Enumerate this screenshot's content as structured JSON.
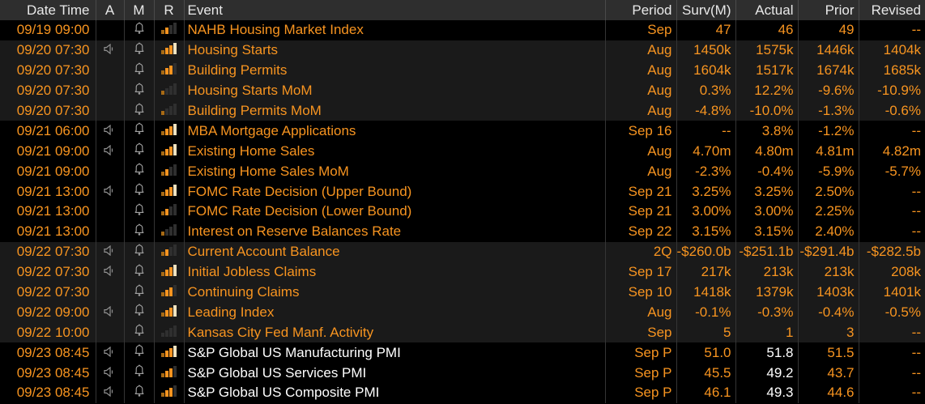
{
  "colors": {
    "amber": "#f79420",
    "white_text": "#ffffff",
    "header_bg": "#2e2e2e",
    "header_text": "#e8e8e8",
    "row_black": "#000000",
    "row_dark": "#1a1a1a",
    "grid_line": "#353535",
    "icon_gray": "#9a9a9a",
    "relevance_bar_orange": "#f79420",
    "relevance_bar_white": "#efe2c0"
  },
  "icons": {
    "speaker": "speaker-icon",
    "bell": "bell-icon",
    "relevance": "relevance-bars-icon"
  },
  "table": {
    "columns": [
      {
        "key": "datetime",
        "label": "Date Time"
      },
      {
        "key": "alert",
        "label": "A"
      },
      {
        "key": "monitor",
        "label": "M"
      },
      {
        "key": "relevance",
        "label": "R"
      },
      {
        "key": "event",
        "label": "Event"
      },
      {
        "key": "period",
        "label": "Period"
      },
      {
        "key": "surv",
        "label": "Surv(M)"
      },
      {
        "key": "actual",
        "label": "Actual"
      },
      {
        "key": "prior",
        "label": "Prior"
      },
      {
        "key": "revised",
        "label": "Revised"
      }
    ],
    "rows": [
      {
        "datetime": "09/19 09:00",
        "speaker": false,
        "bell": true,
        "relevance": 2,
        "event": "NAHB Housing Market Index",
        "period": "Sep",
        "surv": "47",
        "actual": "46",
        "prior": "49",
        "revised": "--",
        "highlight": false
      },
      {
        "datetime": "09/20 07:30",
        "speaker": true,
        "bell": true,
        "relevance": 4,
        "event": "Housing Starts",
        "period": "Aug",
        "surv": "1450k",
        "actual": "1575k",
        "prior": "1446k",
        "revised": "1404k",
        "highlight": false
      },
      {
        "datetime": "09/20 07:30",
        "speaker": false,
        "bell": true,
        "relevance": 3,
        "event": "Building Permits",
        "period": "Aug",
        "surv": "1604k",
        "actual": "1517k",
        "prior": "1674k",
        "revised": "1685k",
        "highlight": false
      },
      {
        "datetime": "09/20 07:30",
        "speaker": false,
        "bell": true,
        "relevance": 1,
        "event": "Housing Starts MoM",
        "period": "Aug",
        "surv": "0.3%",
        "actual": "12.2%",
        "prior": "-9.6%",
        "revised": "-10.9%",
        "highlight": false
      },
      {
        "datetime": "09/20 07:30",
        "speaker": false,
        "bell": true,
        "relevance": 1,
        "event": "Building Permits MoM",
        "period": "Aug",
        "surv": "-4.8%",
        "actual": "-10.0%",
        "prior": "-1.3%",
        "revised": "-0.6%",
        "highlight": false
      },
      {
        "datetime": "09/21 06:00",
        "speaker": true,
        "bell": true,
        "relevance": 4,
        "event": "MBA Mortgage Applications",
        "period": "Sep 16",
        "surv": "--",
        "actual": "3.8%",
        "prior": "-1.2%",
        "revised": "--",
        "highlight": false
      },
      {
        "datetime": "09/21 09:00",
        "speaker": true,
        "bell": true,
        "relevance": 4,
        "event": "Existing Home Sales",
        "period": "Aug",
        "surv": "4.70m",
        "actual": "4.80m",
        "prior": "4.81m",
        "revised": "4.82m",
        "highlight": false
      },
      {
        "datetime": "09/21 09:00",
        "speaker": false,
        "bell": true,
        "relevance": 2,
        "event": "Existing Home Sales MoM",
        "period": "Aug",
        "surv": "-2.3%",
        "actual": "-0.4%",
        "prior": "-5.9%",
        "revised": "-5.7%",
        "highlight": false
      },
      {
        "datetime": "09/21 13:00",
        "speaker": true,
        "bell": true,
        "relevance": 4,
        "event": "FOMC Rate Decision (Upper Bound)",
        "period": "Sep 21",
        "surv": "3.25%",
        "actual": "3.25%",
        "prior": "2.50%",
        "revised": "--",
        "highlight": false
      },
      {
        "datetime": "09/21 13:00",
        "speaker": false,
        "bell": true,
        "relevance": 2,
        "event": "FOMC Rate Decision (Lower Bound)",
        "period": "Sep 21",
        "surv": "3.00%",
        "actual": "3.00%",
        "prior": "2.25%",
        "revised": "--",
        "highlight": false
      },
      {
        "datetime": "09/21 13:00",
        "speaker": false,
        "bell": true,
        "relevance": 1,
        "event": "Interest on Reserve Balances Rate",
        "period": "Sep 22",
        "surv": "3.15%",
        "actual": "3.15%",
        "prior": "2.40%",
        "revised": "--",
        "highlight": false
      },
      {
        "datetime": "09/22 07:30",
        "speaker": true,
        "bell": true,
        "relevance": 2,
        "event": "Current Account Balance",
        "period": "2Q",
        "surv": "-$260.0b",
        "actual": "-$251.1b",
        "prior": "-$291.4b",
        "revised": "-$282.5b",
        "highlight": false
      },
      {
        "datetime": "09/22 07:30",
        "speaker": true,
        "bell": true,
        "relevance": 4,
        "event": "Initial Jobless Claims",
        "period": "Sep 17",
        "surv": "217k",
        "actual": "213k",
        "prior": "213k",
        "revised": "208k",
        "highlight": false
      },
      {
        "datetime": "09/22 07:30",
        "speaker": false,
        "bell": true,
        "relevance": 3,
        "event": "Continuing Claims",
        "period": "Sep 10",
        "surv": "1418k",
        "actual": "1379k",
        "prior": "1403k",
        "revised": "1401k",
        "highlight": false
      },
      {
        "datetime": "09/22 09:00",
        "speaker": true,
        "bell": true,
        "relevance": 4,
        "event": "Leading Index",
        "period": "Aug",
        "surv": "-0.1%",
        "actual": "-0.3%",
        "prior": "-0.4%",
        "revised": "-0.5%",
        "highlight": false
      },
      {
        "datetime": "09/22 10:00",
        "speaker": false,
        "bell": true,
        "relevance": 0,
        "event": "Kansas City Fed Manf. Activity",
        "period": "Sep",
        "surv": "5",
        "actual": "1",
        "prior": "3",
        "revised": "--",
        "highlight": false
      },
      {
        "datetime": "09/23 08:45",
        "speaker": true,
        "bell": true,
        "relevance": 4,
        "event": "S&P Global US Manufacturing PMI",
        "period": "Sep P",
        "surv": "51.0",
        "actual": "51.8",
        "prior": "51.5",
        "revised": "--",
        "highlight": true
      },
      {
        "datetime": "09/23 08:45",
        "speaker": true,
        "bell": true,
        "relevance": 3,
        "event": "S&P Global US Services PMI",
        "period": "Sep P",
        "surv": "45.5",
        "actual": "49.2",
        "prior": "43.7",
        "revised": "--",
        "highlight": true
      },
      {
        "datetime": "09/23 08:45",
        "speaker": true,
        "bell": true,
        "relevance": 3,
        "event": "S&P Global US Composite PMI",
        "period": "Sep P",
        "surv": "46.1",
        "actual": "49.3",
        "prior": "44.6",
        "revised": "--",
        "highlight": true
      }
    ]
  }
}
